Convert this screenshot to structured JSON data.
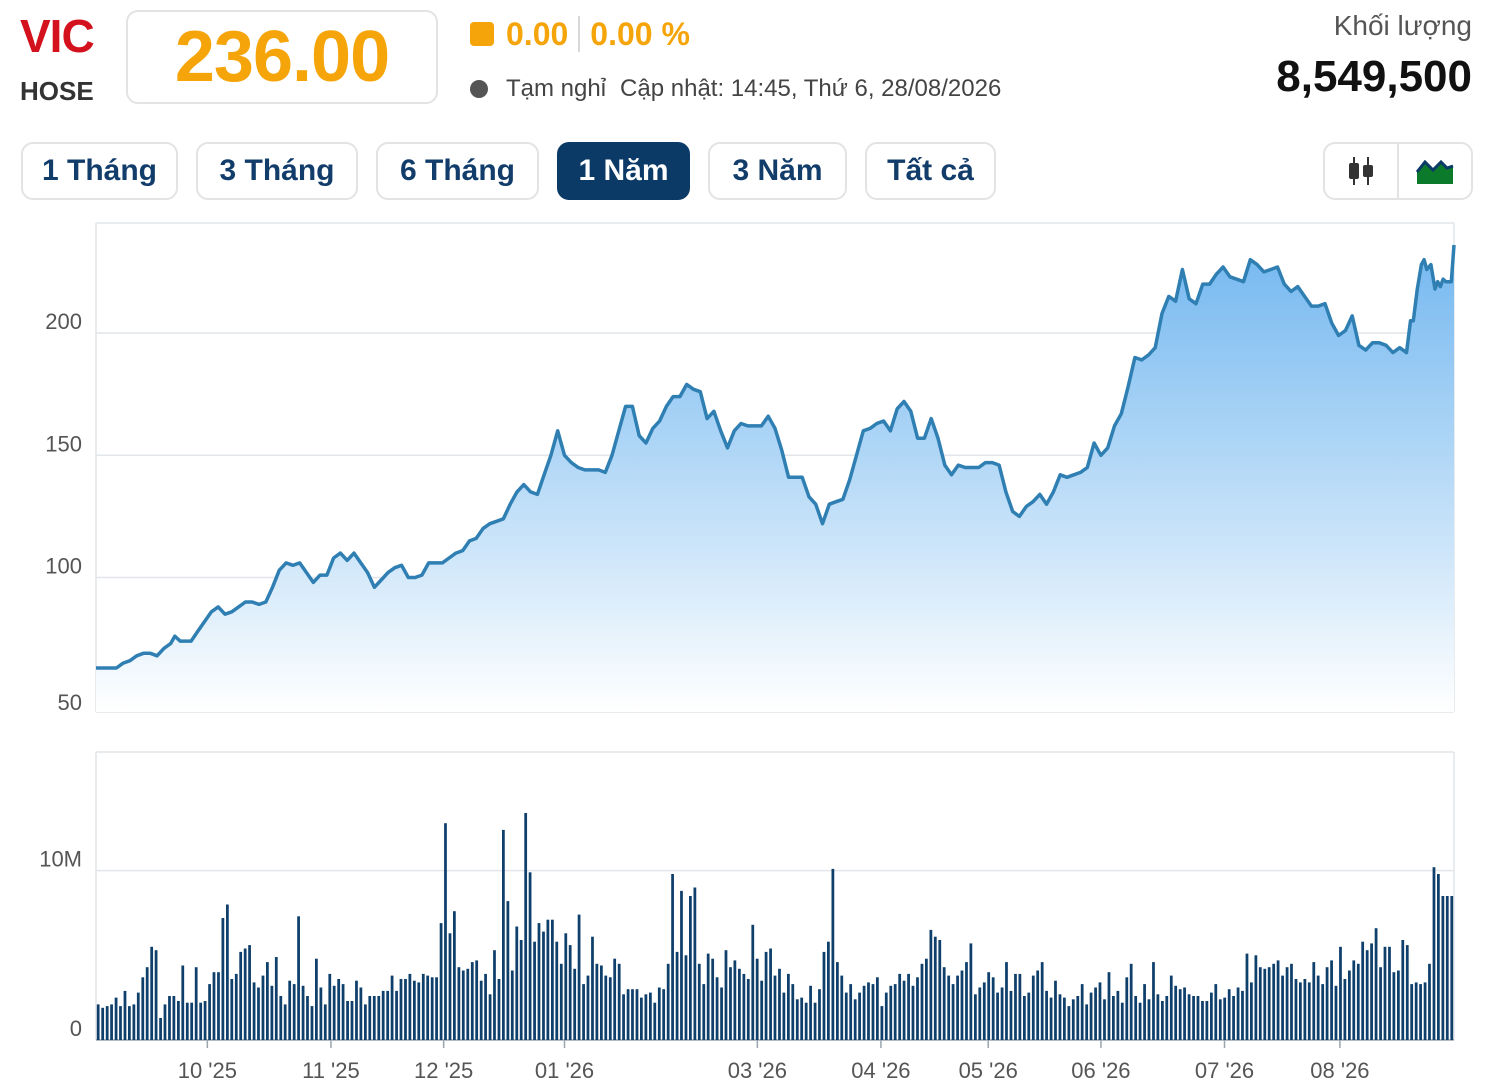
{
  "header": {
    "ticker": "VIC",
    "exchange": "HOSE",
    "price": "236.00",
    "change": "0.00",
    "change_pct": "0.00 %",
    "status": "Tạm nghỉ",
    "updated": "Cập nhật: 14:45, Thứ 6, 28/08/2026",
    "volume_label": "Khối lượng",
    "volume_value": "8,549,500"
  },
  "tabs": [
    {
      "label": "1 Tháng",
      "active": false
    },
    {
      "label": "3 Tháng",
      "active": false
    },
    {
      "label": "6 Tháng",
      "active": false
    },
    {
      "label": "1 Năm",
      "active": true
    },
    {
      "label": "3 Năm",
      "active": false
    },
    {
      "label": "Tất cả",
      "active": false
    }
  ],
  "chart_switch": [
    {
      "icon": "candlestick-icon",
      "active": false
    },
    {
      "icon": "area-chart-icon",
      "active": true
    }
  ],
  "colors": {
    "accent_price": "#f5a50a",
    "ticker": "#d3121e",
    "line": "#2f7fb3",
    "area_top": "#6db4ef",
    "volume_bar": "#0f3f6b",
    "active_tab": "#0b3a66"
  },
  "chart_data": [
    {
      "type": "area",
      "y_ticks": [
        "50",
        "100",
        "150",
        "200"
      ],
      "ylim": [
        45,
        245
      ],
      "x_range": [
        0,
        1
      ],
      "grid": true,
      "points": [
        [
          0.0,
          63
        ],
        [
          0.01,
          63
        ],
        [
          0.015,
          63
        ],
        [
          0.02,
          65
        ],
        [
          0.025,
          66
        ],
        [
          0.03,
          68
        ],
        [
          0.035,
          69
        ],
        [
          0.04,
          69
        ],
        [
          0.045,
          68
        ],
        [
          0.05,
          71
        ],
        [
          0.055,
          73
        ],
        [
          0.058,
          76
        ],
        [
          0.062,
          74
        ],
        [
          0.066,
          74
        ],
        [
          0.07,
          74
        ],
        [
          0.075,
          78
        ],
        [
          0.08,
          82
        ],
        [
          0.085,
          86
        ],
        [
          0.09,
          88
        ],
        [
          0.095,
          85
        ],
        [
          0.1,
          86
        ],
        [
          0.105,
          88
        ],
        [
          0.11,
          90
        ],
        [
          0.115,
          90
        ],
        [
          0.12,
          89
        ],
        [
          0.125,
          90
        ],
        [
          0.13,
          96
        ],
        [
          0.135,
          103
        ],
        [
          0.14,
          106
        ],
        [
          0.145,
          105
        ],
        [
          0.15,
          106
        ],
        [
          0.155,
          102
        ],
        [
          0.16,
          98
        ],
        [
          0.165,
          101
        ],
        [
          0.17,
          101
        ],
        [
          0.175,
          108
        ],
        [
          0.18,
          110
        ],
        [
          0.185,
          107
        ],
        [
          0.19,
          110
        ],
        [
          0.195,
          106
        ],
        [
          0.2,
          102
        ],
        [
          0.205,
          96
        ],
        [
          0.21,
          99
        ],
        [
          0.215,
          102
        ],
        [
          0.22,
          104
        ],
        [
          0.225,
          105
        ],
        [
          0.23,
          100
        ],
        [
          0.235,
          100
        ],
        [
          0.24,
          101
        ],
        [
          0.245,
          106
        ],
        [
          0.25,
          106
        ],
        [
          0.255,
          106
        ],
        [
          0.26,
          108
        ],
        [
          0.265,
          110
        ],
        [
          0.27,
          111
        ],
        [
          0.275,
          115
        ],
        [
          0.28,
          116
        ],
        [
          0.285,
          120
        ],
        [
          0.29,
          122
        ],
        [
          0.295,
          123
        ],
        [
          0.3,
          124
        ],
        [
          0.305,
          130
        ],
        [
          0.31,
          135
        ],
        [
          0.315,
          138
        ],
        [
          0.32,
          135
        ],
        [
          0.325,
          134
        ],
        [
          0.33,
          142
        ],
        [
          0.335,
          150
        ],
        [
          0.34,
          160
        ],
        [
          0.345,
          150
        ],
        [
          0.35,
          147
        ],
        [
          0.355,
          145
        ],
        [
          0.36,
          144
        ],
        [
          0.365,
          144
        ],
        [
          0.37,
          144
        ],
        [
          0.375,
          143
        ],
        [
          0.38,
          150
        ],
        [
          0.385,
          160
        ],
        [
          0.39,
          170
        ],
        [
          0.395,
          170
        ],
        [
          0.4,
          158
        ],
        [
          0.405,
          155
        ],
        [
          0.41,
          161
        ],
        [
          0.415,
          164
        ],
        [
          0.42,
          170
        ],
        [
          0.425,
          174
        ],
        [
          0.43,
          174
        ],
        [
          0.435,
          179
        ],
        [
          0.44,
          177
        ],
        [
          0.445,
          176
        ],
        [
          0.45,
          165
        ],
        [
          0.455,
          168
        ],
        [
          0.46,
          160
        ],
        [
          0.465,
          153
        ],
        [
          0.47,
          160
        ],
        [
          0.475,
          163
        ],
        [
          0.48,
          162
        ],
        [
          0.485,
          162
        ],
        [
          0.49,
          162
        ],
        [
          0.495,
          166
        ],
        [
          0.5,
          161
        ],
        [
          0.505,
          152
        ],
        [
          0.51,
          141
        ],
        [
          0.515,
          141
        ],
        [
          0.52,
          141
        ],
        [
          0.525,
          133
        ],
        [
          0.53,
          130
        ],
        [
          0.535,
          122
        ],
        [
          0.54,
          130
        ],
        [
          0.545,
          131
        ],
        [
          0.55,
          132
        ],
        [
          0.555,
          140
        ],
        [
          0.56,
          150
        ],
        [
          0.565,
          160
        ],
        [
          0.57,
          161
        ],
        [
          0.575,
          163
        ],
        [
          0.58,
          164
        ],
        [
          0.585,
          160
        ],
        [
          0.59,
          169
        ],
        [
          0.595,
          172
        ],
        [
          0.6,
          168
        ],
        [
          0.605,
          157
        ],
        [
          0.61,
          157
        ],
        [
          0.615,
          165
        ],
        [
          0.62,
          157
        ],
        [
          0.625,
          146
        ],
        [
          0.63,
          142
        ],
        [
          0.635,
          146
        ],
        [
          0.64,
          145
        ],
        [
          0.645,
          145
        ],
        [
          0.65,
          145
        ],
        [
          0.655,
          147
        ],
        [
          0.66,
          147
        ],
        [
          0.665,
          146
        ],
        [
          0.67,
          135
        ],
        [
          0.675,
          127
        ],
        [
          0.68,
          125
        ],
        [
          0.685,
          129
        ],
        [
          0.69,
          131
        ],
        [
          0.695,
          134
        ],
        [
          0.7,
          130
        ],
        [
          0.705,
          135
        ],
        [
          0.71,
          142
        ],
        [
          0.715,
          141
        ],
        [
          0.72,
          142
        ],
        [
          0.725,
          143
        ],
        [
          0.73,
          145
        ],
        [
          0.735,
          155
        ],
        [
          0.74,
          150
        ],
        [
          0.745,
          153
        ],
        [
          0.75,
          162
        ],
        [
          0.755,
          167
        ],
        [
          0.76,
          178
        ],
        [
          0.765,
          190
        ],
        [
          0.77,
          189
        ],
        [
          0.775,
          191
        ],
        [
          0.78,
          194
        ],
        [
          0.785,
          208
        ],
        [
          0.79,
          215
        ],
        [
          0.795,
          213
        ],
        [
          0.8,
          226
        ],
        [
          0.805,
          214
        ],
        [
          0.81,
          212
        ],
        [
          0.815,
          220
        ],
        [
          0.82,
          220
        ],
        [
          0.825,
          224
        ],
        [
          0.83,
          227
        ],
        [
          0.835,
          223
        ],
        [
          0.84,
          222
        ],
        [
          0.845,
          221
        ],
        [
          0.85,
          230
        ],
        [
          0.855,
          228
        ],
        [
          0.86,
          225
        ],
        [
          0.865,
          226
        ],
        [
          0.87,
          227
        ],
        [
          0.875,
          220
        ],
        [
          0.88,
          217
        ],
        [
          0.885,
          219
        ],
        [
          0.89,
          215
        ],
        [
          0.895,
          211
        ],
        [
          0.9,
          211
        ],
        [
          0.905,
          212
        ],
        [
          0.91,
          204
        ],
        [
          0.915,
          199
        ],
        [
          0.92,
          201
        ],
        [
          0.925,
          207
        ],
        [
          0.93,
          195
        ],
        [
          0.935,
          193
        ],
        [
          0.94,
          196
        ],
        [
          0.945,
          196
        ],
        [
          0.95,
          195
        ],
        [
          0.955,
          192
        ],
        [
          0.96,
          194
        ],
        [
          0.965,
          192
        ],
        [
          0.968,
          205
        ],
        [
          0.97,
          205
        ],
        [
          0.973,
          218
        ],
        [
          0.976,
          228
        ],
        [
          0.978,
          230
        ],
        [
          0.98,
          226
        ],
        [
          0.983,
          228
        ],
        [
          0.986,
          218
        ],
        [
          0.988,
          221
        ],
        [
          0.99,
          219
        ],
        [
          0.992,
          222
        ],
        [
          0.994,
          221
        ],
        [
          0.996,
          221
        ],
        [
          0.998,
          221
        ],
        [
          1.0,
          236
        ]
      ]
    },
    {
      "type": "bar",
      "y_ticks": [
        "0",
        "10M"
      ],
      "ylim": [
        0,
        17000000
      ],
      "x_range": [
        0,
        1
      ],
      "x_tick_labels": [
        {
          "label": "10 '25",
          "x": 0.082
        },
        {
          "label": "11 '25",
          "x": 0.173
        },
        {
          "label": "12 '25",
          "x": 0.256
        },
        {
          "label": "01 '26",
          "x": 0.345
        },
        {
          "label": "03 '26",
          "x": 0.487
        },
        {
          "label": "04 '26",
          "x": 0.578
        },
        {
          "label": "05 '26",
          "x": 0.657
        },
        {
          "label": "06 '26",
          "x": 0.74
        },
        {
          "label": "07 '26",
          "x": 0.831
        },
        {
          "label": "08 '26",
          "x": 0.916
        }
      ],
      "values": [
        2.1,
        1.9,
        2.0,
        2.1,
        2.5,
        2.0,
        2.9,
        2.0,
        2.1,
        2.8,
        3.7,
        4.3,
        5.5,
        5.3,
        1.3,
        2.1,
        2.6,
        2.6,
        2.3,
        4.4,
        2.2,
        2.2,
        4.3,
        2.2,
        2.3,
        3.3,
        4.0,
        4.0,
        7.2,
        8.0,
        3.6,
        3.9,
        5.2,
        5.4,
        5.6,
        3.4,
        3.1,
        3.8,
        4.6,
        3.2,
        4.9,
        2.6,
        2.1,
        3.5,
        3.3,
        7.3,
        3.2,
        2.6,
        2.0,
        4.8,
        3.1,
        2.1,
        3.9,
        3.2,
        3.6,
        3.3,
        2.3,
        2.3,
        3.5,
        3.1,
        2.1,
        2.6,
        2.6,
        2.6,
        2.9,
        2.9,
        3.8,
        2.9,
        3.6,
        3.6,
        3.9,
        3.5,
        3.4,
        3.9,
        3.8,
        3.7,
        3.7,
        6.9,
        12.8,
        6.3,
        7.6,
        4.3,
        4.1,
        4.2,
        4.6,
        4.7,
        3.5,
        3.9,
        2.7,
        5.3,
        3.6,
        12.4,
        8.2,
        4.1,
        6.7,
        5.9,
        13.4,
        9.9,
        5.8,
        6.9,
        6.4,
        7.1,
        7.1,
        5.8,
        4.5,
        6.3,
        5.6,
        4.2,
        7.4,
        3.3,
        3.8,
        6.1,
        4.5,
        4.4,
        3.8,
        3.7,
        4.8,
        4.5,
        2.7,
        3.0,
        3.0,
        3.0,
        2.5,
        2.7,
        2.8,
        2.2,
        3.1,
        3.0,
        4.5,
        9.8,
        5.2,
        8.8,
        5.0,
        8.5,
        9.0,
        4.5,
        3.3,
        5.1,
        4.8,
        3.7,
        3.1,
        5.3,
        4.3,
        4.7,
        4.2,
        3.9,
        3.6,
        6.8,
        4.8,
        3.5,
        5.2,
        5.4,
        3.8,
        4.2,
        2.8,
        3.9,
        3.3,
        2.4,
        2.5,
        2.2,
        3.2,
        2.2,
        3.0,
        5.2,
        5.8,
        10.1,
        4.6,
        3.8,
        2.8,
        3.3,
        2.4,
        2.8,
        3.2,
        3.4,
        3.3,
        3.7,
        2.0,
        2.8,
        3.2,
        3.3,
        3.9,
        3.5,
        3.9,
        3.2,
        3.7,
        4.5,
        4.8,
        6.5,
        6.1,
        5.9,
        4.3,
        3.8,
        3.3,
        3.8,
        4.1,
        4.6,
        5.7,
        2.7,
        3.1,
        3.4,
        4.0,
        3.7,
        2.8,
        3.1,
        4.6,
        2.9,
        3.9,
        3.9,
        2.6,
        2.8,
        3.8,
        4.1,
        4.6,
        2.9,
        2.5,
        3.5,
        2.7,
        2.5,
        2.0,
        2.4,
        2.6,
        3.3,
        2.1,
        2.8,
        3.1,
        3.4,
        2.4,
        4.0,
        2.6,
        2.9,
        2.2,
        3.7,
        4.5,
        2.6,
        2.2,
        3.3,
        2.4,
        4.6,
        2.7,
        2.3,
        2.6,
        3.8,
        3.2,
        3.0,
        3.1,
        2.7,
        2.6,
        2.6,
        2.3,
        2.3,
        2.8,
        3.3,
        2.4,
        2.5,
        3.0,
        2.6,
        3.1,
        2.9,
        5.1,
        3.4,
        5.0,
        4.3,
        4.2,
        4.3,
        4.5,
        4.7,
        3.8,
        4.3,
        4.5,
        3.6,
        3.4,
        3.6,
        3.4,
        4.6,
        3.8,
        3.3,
        4.3,
        4.7,
        3.2,
        5.5,
        3.6,
        4.1,
        4.7,
        4.5,
        5.8,
        5.3,
        5.7,
        6.6,
        4.3,
        5.5,
        5.5,
        4.0,
        4.1,
        5.9,
        5.6,
        3.3,
        3.4,
        3.3,
        3.4,
        4.5,
        10.2,
        9.8,
        8.5,
        8.5,
        8.5
      ],
      "value_unit": "million shares"
    }
  ]
}
